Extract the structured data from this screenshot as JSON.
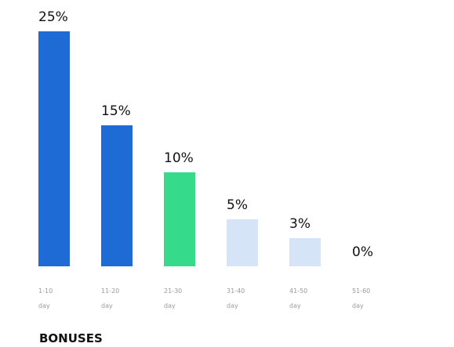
{
  "chart_data": {
    "type": "bar",
    "title": "BONUSES",
    "categories": [
      [
        "1-10",
        "day"
      ],
      [
        "11-20",
        "day"
      ],
      [
        "21-30",
        "day"
      ],
      [
        "31-40",
        "day"
      ],
      [
        "41-50",
        "day"
      ],
      [
        "51-60",
        "day"
      ]
    ],
    "values": [
      25,
      15,
      10,
      5,
      3,
      0
    ],
    "value_labels": [
      "25%",
      "15%",
      "10%",
      "5%",
      "3%",
      "0%"
    ],
    "bar_colors": [
      "#1e6bd6",
      "#1e6bd6",
      "#35db8a",
      "#d6e4f7",
      "#d6e4f7",
      "#d6e4f7"
    ],
    "ylim": [
      0,
      25
    ],
    "grid": false,
    "legend": "none"
  }
}
